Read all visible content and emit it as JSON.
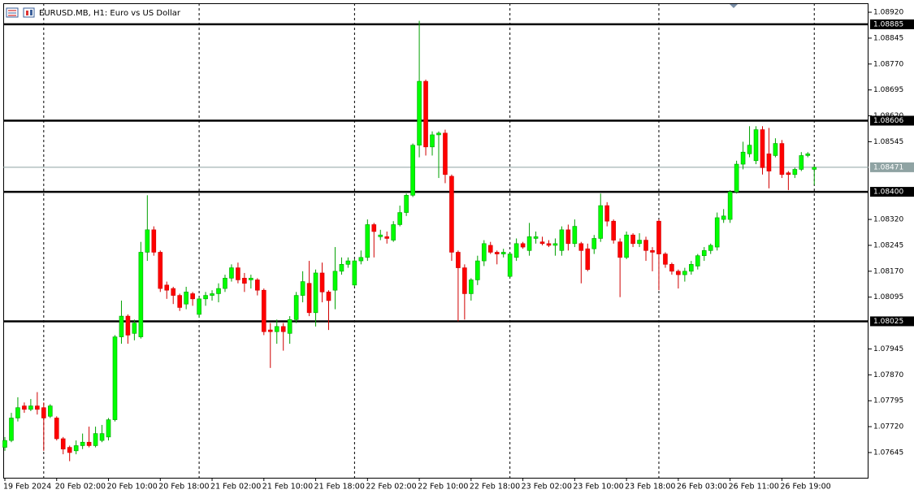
{
  "chart_data": {
    "type": "candlestick",
    "title": "EURUSD.MB, H1:  Euro vs US Dollar",
    "categories": [
      "19 Feb 2024",
      null,
      null,
      null,
      null,
      null,
      null,
      null,
      "20 Feb 02:00",
      null,
      null,
      null,
      null,
      null,
      null,
      null,
      "20 Feb 10:00",
      null,
      null,
      null,
      null,
      null,
      null,
      null,
      "20 Feb 18:00",
      null,
      null,
      null,
      null,
      null,
      null,
      null,
      "21 Feb 02:00",
      null,
      null,
      null,
      null,
      null,
      null,
      null,
      "21 Feb 10:00",
      null,
      null,
      null,
      null,
      null,
      null,
      null,
      "21 Feb 18:00",
      null,
      null,
      null,
      null,
      null,
      null,
      null,
      "22 Feb 02:00",
      null,
      null,
      null,
      null,
      null,
      null,
      null,
      "22 Feb 10:00",
      null,
      null,
      null,
      null,
      null,
      null,
      null,
      "22 Feb 18:00",
      null,
      null,
      null,
      null,
      null,
      null,
      null,
      "23 Feb 02:00",
      null,
      null,
      null,
      null,
      null,
      null,
      null,
      "23 Feb 10:00",
      null,
      null,
      null,
      null,
      null,
      null,
      null,
      "23 Feb 18:00",
      null,
      null,
      null,
      null,
      null,
      null,
      null,
      "26 Feb 03:00",
      null,
      null,
      null,
      null,
      null,
      null,
      null,
      "26 Feb 11:00",
      null,
      null,
      null,
      null,
      null,
      null,
      null,
      "26 Feb 19:00",
      null,
      null,
      null,
      null,
      null
    ],
    "open": [
      1.0766,
      1.0768,
      1.07745,
      1.0778,
      1.0777,
      1.0778,
      1.07775,
      1.0775,
      1.07745,
      1.07685,
      1.0766,
      1.0765,
      1.07665,
      1.07675,
      1.07665,
      1.0768,
      1.0769,
      1.0774,
      1.0798,
      1.0804,
      1.0799,
      1.0798,
      1.08225,
      1.0829,
      1.08225,
      1.0813,
      1.0812,
      1.081,
      1.08075,
      1.08105,
      1.08045,
      1.0809,
      1.081,
      1.08105,
      1.0812,
      1.0815,
      1.0818,
      1.0815,
      1.08145,
      1.08145,
      1.08115,
      1.08,
      1.07995,
      1.0801,
      1.0799,
      1.0803,
      1.081,
      1.08135,
      1.0805,
      1.08165,
      1.0811,
      1.08115,
      1.0817,
      1.0819,
      1.0813,
      1.082,
      1.0821,
      1.08305,
      1.0827,
      1.0827,
      1.0826,
      1.08305,
      1.0834,
      1.0839,
      1.08535,
      1.0872,
      1.0853,
      1.08565,
      1.0857,
      1.08445,
      1.08225,
      1.0818,
      1.08105,
      1.08145,
      1.082,
      1.08245,
      1.08225,
      1.0822,
      1.08155,
      1.0821,
      1.0825,
      1.0823,
      1.08265,
      1.08255,
      1.0825,
      1.08245,
      1.0823,
      1.0829,
      1.0825,
      1.0825,
      1.08235,
      1.08235,
      1.08265,
      1.0836,
      1.08315,
      1.08255,
      1.0821,
      1.08275,
      1.0825,
      1.0826,
      1.0823,
      1.08315,
      1.0822,
      1.0819,
      1.0817,
      1.0816,
      1.0817,
      1.08185,
      1.08215,
      1.0823,
      1.0824,
      1.0832,
      1.0832,
      1.084,
      1.0848,
      1.0851,
      1.0849,
      1.0858,
      1.0851,
      1.08505,
      1.0854,
      1.08455,
      1.0845,
      1.08465,
      1.08505,
      1.08465
    ],
    "high": [
      1.0769,
      1.0776,
      1.07805,
      1.0779,
      1.078,
      1.0782,
      1.0779,
      1.07785,
      1.0775,
      1.0769,
      1.07665,
      1.0768,
      1.077,
      1.0772,
      1.0772,
      1.07725,
      1.07745,
      1.07985,
      1.08085,
      1.08045,
      1.0803,
      1.08255,
      1.0839,
      1.083,
      1.0823,
      1.0814,
      1.08125,
      1.08105,
      1.08125,
      1.0811,
      1.08095,
      1.0811,
      1.08115,
      1.08135,
      1.0816,
      1.0819,
      1.08195,
      1.08165,
      1.0816,
      1.0815,
      1.0812,
      1.0802,
      1.0803,
      1.0802,
      1.0804,
      1.0811,
      1.0817,
      1.082,
      1.08175,
      1.08195,
      1.08115,
      1.0824,
      1.0821,
      1.0821,
      1.08205,
      1.0823,
      1.0832,
      1.0831,
      1.0829,
      1.08285,
      1.08315,
      1.0836,
      1.08395,
      1.0854,
      1.08895,
      1.08725,
      1.08575,
      1.08575,
      1.0858,
      1.0845,
      1.0823,
      1.0819,
      1.0815,
      1.08215,
      1.0826,
      1.08255,
      1.0823,
      1.08235,
      1.08225,
      1.08265,
      1.08255,
      1.0831,
      1.08285,
      1.0827,
      1.0826,
      1.08265,
      1.083,
      1.08305,
      1.0832,
      1.08255,
      1.0825,
      1.08275,
      1.08395,
      1.0837,
      1.0832,
      1.08265,
      1.08285,
      1.0828,
      1.0828,
      1.0827,
      1.0824,
      1.0832,
      1.08225,
      1.08195,
      1.08175,
      1.0818,
      1.082,
      1.0822,
      1.0824,
      1.0825,
      1.0834,
      1.0835,
      1.08405,
      1.0849,
      1.08545,
      1.0859,
      1.0859,
      1.0859,
      1.08585,
      1.08555,
      1.0855,
      1.0846,
      1.0847,
      1.08515,
      1.08515,
      1.08475
    ],
    "low": [
      1.0765,
      1.07675,
      1.07735,
      1.0776,
      1.07765,
      1.07755,
      1.0765,
      1.07745,
      1.0768,
      1.0764,
      1.0762,
      1.0764,
      1.07655,
      1.0766,
      1.0766,
      1.07675,
      1.0768,
      1.07735,
      1.0796,
      1.0796,
      1.0797,
      1.07975,
      1.082,
      1.08215,
      1.0811,
      1.0809,
      1.08075,
      1.08055,
      1.0806,
      1.0807,
      1.08035,
      1.0807,
      1.08085,
      1.0808,
      1.0811,
      1.0814,
      1.08135,
      1.0811,
      1.0812,
      1.081,
      1.07985,
      1.0789,
      1.0796,
      1.0794,
      1.0796,
      1.0802,
      1.0808,
      1.0804,
      1.0801,
      1.0808,
      1.08,
      1.0806,
      1.0816,
      1.0818,
      1.08125,
      1.0819,
      1.082,
      1.0821,
      1.0826,
      1.0825,
      1.08255,
      1.083,
      1.0833,
      1.08385,
      1.085,
      1.08505,
      1.08505,
      1.0844,
      1.08425,
      1.082,
      1.08025,
      1.0803,
      1.08085,
      1.0813,
      1.08185,
      1.0822,
      1.0819,
      1.0821,
      1.0815,
      1.082,
      1.08235,
      1.08215,
      1.0825,
      1.08245,
      1.0824,
      1.08215,
      1.08215,
      1.0823,
      1.0824,
      1.08135,
      1.0817,
      1.0822,
      1.08255,
      1.083,
      1.0825,
      1.08095,
      1.08205,
      1.0824,
      1.0824,
      1.082,
      1.0817,
      1.08115,
      1.0818,
      1.0816,
      1.0812,
      1.0814,
      1.0816,
      1.08175,
      1.082,
      1.0822,
      1.0823,
      1.0831,
      1.0831,
      1.08395,
      1.08465,
      1.085,
      1.0848,
      1.0845,
      1.0841,
      1.085,
      1.0844,
      1.08405,
      1.0844,
      1.0846,
      1.085,
      1.0842
    ],
    "close": [
      1.0768,
      1.07745,
      1.07775,
      1.0777,
      1.0778,
      1.0777,
      1.07745,
      1.0778,
      1.07685,
      1.07655,
      1.07645,
      1.07665,
      1.07675,
      1.07665,
      1.077,
      1.077,
      1.0774,
      1.0798,
      1.0804,
      1.07985,
      1.0802,
      1.08225,
      1.0829,
      1.08225,
      1.0812,
      1.08115,
      1.081,
      1.08065,
      1.0811,
      1.0809,
      1.0809,
      1.081,
      1.08105,
      1.0812,
      1.0815,
      1.0818,
      1.08145,
      1.08135,
      1.0815,
      1.08115,
      1.07995,
      1.07995,
      1.0801,
      1.07995,
      1.0803,
      1.081,
      1.0814,
      1.0805,
      1.08165,
      1.0811,
      1.08085,
      1.0817,
      1.0819,
      1.082,
      1.082,
      1.0821,
      1.08305,
      1.08285,
      1.08275,
      1.08265,
      1.08305,
      1.0834,
      1.0839,
      1.08535,
      1.0872,
      1.0853,
      1.08565,
      1.0857,
      1.0845,
      1.08225,
      1.0818,
      1.08105,
      1.08145,
      1.082,
      1.0825,
      1.08225,
      1.0822,
      1.08225,
      1.0822,
      1.0825,
      1.0824,
      1.0827,
      1.0827,
      1.0825,
      1.08245,
      1.0825,
      1.0829,
      1.0825,
      1.083,
      1.0823,
      1.08175,
      1.08265,
      1.0836,
      1.08315,
      1.0826,
      1.0821,
      1.08275,
      1.0825,
      1.0826,
      1.0823,
      1.08225,
      1.0822,
      1.0819,
      1.0817,
      1.0816,
      1.0817,
      1.0819,
      1.08215,
      1.0823,
      1.08245,
      1.08325,
      1.0833,
      1.084,
      1.0848,
      1.08515,
      1.08535,
      1.0858,
      1.0847,
      1.0846,
      1.0854,
      1.0845,
      1.0845,
      1.08465,
      1.08505,
      1.0851,
      1.08471
    ],
    "up_color": "#00ff00",
    "down_color": "#ff0000",
    "ylim": [
      1.07572,
      1.08946
    ],
    "yticks": [
      {
        "value": 1.0892,
        "label": "1.08920"
      },
      {
        "value": 1.08845,
        "label": "1.08845"
      },
      {
        "value": 1.0877,
        "label": "1.08770"
      },
      {
        "value": 1.08695,
        "label": "1.08695"
      },
      {
        "value": 1.0862,
        "label": "1.08620"
      },
      {
        "value": 1.08545,
        "label": "1.08545"
      },
      {
        "value": 1.0832,
        "label": "1.08320"
      },
      {
        "value": 1.08245,
        "label": "1.08245"
      },
      {
        "value": 1.0817,
        "label": "1.08170"
      },
      {
        "value": 1.08095,
        "label": "1.08095"
      },
      {
        "value": 1.07945,
        "label": "1.07945"
      },
      {
        "value": 1.0787,
        "label": "1.07870"
      },
      {
        "value": 1.07795,
        "label": "1.07795"
      },
      {
        "value": 1.0772,
        "label": "1.07720"
      },
      {
        "value": 1.07645,
        "label": "1.07645"
      }
    ],
    "hlines": [
      1.08885,
      1.08606,
      {
        "value": 1.084,
        "label": "1.08400"
      },
      1.08025
    ],
    "current_price": 1.08471
  }
}
